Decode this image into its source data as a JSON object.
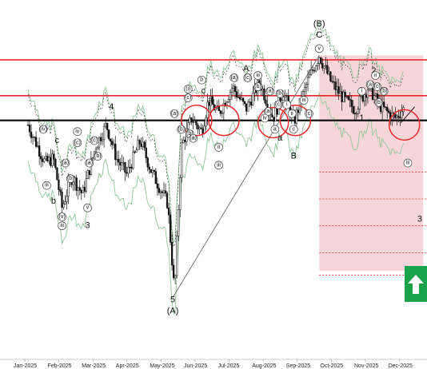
{
  "chart_data": {
    "type": "candlestick",
    "title": "",
    "xlabel": "",
    "ylabel": "",
    "x_tick_labels": [
      "Jan-2025",
      "Feb-2025",
      "Mar-2025",
      "Apr-2025",
      "May-2025",
      "Jun-2025",
      "Jul-2025",
      "Aug-2025",
      "Sep-2025",
      "Oct-2025",
      "Nov-2025",
      "Dec-2025"
    ],
    "y_range": [
      0,
      100
    ],
    "horizontal_levels": [
      {
        "name": "resistance-top",
        "value": 84,
        "color": "#e8282a"
      },
      {
        "name": "resistance-mid",
        "value": 68,
        "color": "#e8282a"
      },
      {
        "name": "support",
        "value": 57,
        "color": "#111111"
      }
    ],
    "target_zone": {
      "from_month": 8.55,
      "to_month": 11.6,
      "value_top": 86,
      "value_bottom": -10,
      "color": "#f4c8cc"
    },
    "target_lines": [
      34,
      22,
      10,
      -2,
      -12
    ],
    "trendline": [
      {
        "m": 4.25,
        "v": -22
      },
      {
        "m": 8.55,
        "v": 86
      }
    ],
    "candles_monthly_path": [
      {
        "m": 0.0,
        "v": 55
      },
      {
        "m": 0.5,
        "v": 38
      },
      {
        "m": 0.75,
        "v": 40
      },
      {
        "m": 1.0,
        "v": 18
      },
      {
        "m": 1.3,
        "v": 32
      },
      {
        "m": 1.6,
        "v": 24
      },
      {
        "m": 2.0,
        "v": 46
      },
      {
        "m": 2.3,
        "v": 55
      },
      {
        "m": 2.6,
        "v": 40
      },
      {
        "m": 2.9,
        "v": 33
      },
      {
        "m": 3.3,
        "v": 48
      },
      {
        "m": 3.6,
        "v": 35
      },
      {
        "m": 4.1,
        "v": 20
      },
      {
        "m": 4.3,
        "v": -20
      },
      {
        "m": 4.5,
        "v": 45
      },
      {
        "m": 4.8,
        "v": 58
      },
      {
        "m": 5.1,
        "v": 52
      },
      {
        "m": 5.3,
        "v": 66
      },
      {
        "m": 5.6,
        "v": 60
      },
      {
        "m": 6.0,
        "v": 72
      },
      {
        "m": 6.4,
        "v": 62
      },
      {
        "m": 6.8,
        "v": 74
      },
      {
        "m": 7.2,
        "v": 58
      },
      {
        "m": 7.5,
        "v": 70
      },
      {
        "m": 7.8,
        "v": 56
      },
      {
        "m": 8.2,
        "v": 74
      },
      {
        "m": 8.55,
        "v": 86
      },
      {
        "m": 8.9,
        "v": 74
      },
      {
        "m": 9.3,
        "v": 66
      },
      {
        "m": 9.6,
        "v": 62
      },
      {
        "m": 10.0,
        "v": 72
      },
      {
        "m": 10.3,
        "v": 64
      },
      {
        "m": 10.6,
        "v": 60
      },
      {
        "m": 10.8,
        "v": 58
      },
      {
        "m": 11.0,
        "v": 62
      }
    ],
    "wave_labels": [
      {
        "text": "(B)",
        "m": 8.55,
        "v": 100,
        "circled": false
      },
      {
        "text": "C",
        "m": 8.55,
        "v": 95,
        "circled": false
      },
      {
        "text": "v",
        "m": 8.55,
        "v": 89,
        "circled": true
      },
      {
        "text": "A",
        "m": 6.4,
        "v": 80,
        "circled": false
      },
      {
        "text": "B",
        "m": 7.8,
        "v": 41,
        "circled": false
      },
      {
        "text": "2",
        "m": 10.15,
        "v": 79,
        "circled": false
      },
      {
        "text": "1",
        "m": 9.8,
        "v": 58,
        "circled": false
      },
      {
        "text": "3",
        "m": 11.5,
        "v": 13,
        "circled": false
      },
      {
        "text": "4",
        "m": 2.45,
        "v": 63,
        "circled": false
      },
      {
        "text": "3",
        "m": 1.75,
        "v": 10,
        "circled": false
      },
      {
        "text": "5",
        "m": 4.25,
        "v": -23,
        "circled": false
      },
      {
        "text": "(A)",
        "m": 4.25,
        "v": -28,
        "circled": false
      },
      {
        "text": "b",
        "m": 5.1,
        "v": 75,
        "circled": true
      },
      {
        "text": "c",
        "m": 5.15,
        "v": 70,
        "circled": false
      },
      {
        "text": "a",
        "m": 5.35,
        "v": 66,
        "circled": false
      },
      {
        "text": "(a)",
        "m": 6.05,
        "v": 76,
        "circled": true
      },
      {
        "text": "(c)",
        "m": 6.45,
        "v": 76,
        "circled": true
      },
      {
        "text": "iii",
        "m": 6.75,
        "v": 77,
        "circled": true
      },
      {
        "text": "(b)",
        "m": 6.75,
        "v": 72,
        "circled": true
      },
      {
        "text": "(a)",
        "m": 7.1,
        "v": 70,
        "circled": true
      },
      {
        "text": "(b)",
        "m": 7.4,
        "v": 69,
        "circled": true
      },
      {
        "text": "(c)",
        "m": 7.35,
        "v": 64,
        "circled": true
      },
      {
        "text": "i",
        "m": 7.6,
        "v": 64,
        "circled": true
      },
      {
        "text": "ii",
        "m": 7.75,
        "v": 60,
        "circled": true
      },
      {
        "text": "iii",
        "m": 8.1,
        "v": 66,
        "circled": true
      },
      {
        "text": "(a)",
        "m": 7.05,
        "v": 61,
        "circled": true
      },
      {
        "text": "iv",
        "m": 6.95,
        "v": 58,
        "circled": true
      },
      {
        "text": "a",
        "m": 7.25,
        "v": 53,
        "circled": true
      },
      {
        "text": "c",
        "m": 7.8,
        "v": 53,
        "circled": true
      },
      {
        "text": "(c)",
        "m": 8.25,
        "v": 60,
        "circled": true
      },
      {
        "text": "ii",
        "m": 10.2,
        "v": 77,
        "circled": true
      },
      {
        "text": "(c)",
        "m": 10.25,
        "v": 72,
        "circled": true
      },
      {
        "text": "(a)",
        "m": 10.05,
        "v": 73,
        "circled": true
      },
      {
        "text": "(b)",
        "m": 10.45,
        "v": 70,
        "circled": true
      },
      {
        "text": "iii",
        "m": 11.15,
        "v": 38,
        "circled": true
      },
      {
        "text": "i",
        "m": 9.8,
        "v": 70,
        "circled": true
      },
      {
        "text": "(b)",
        "m": 10.3,
        "v": 65,
        "circled": true
      },
      {
        "text": "(i)",
        "m": 4.7,
        "v": 71,
        "circled": true
      },
      {
        "text": "(c)",
        "m": 4.7,
        "v": 67,
        "circled": true
      },
      {
        "text": "(a)",
        "m": 4.3,
        "v": 60,
        "circled": true
      },
      {
        "text": "(b)",
        "m": 4.5,
        "v": 53,
        "circled": true
      },
      {
        "text": "(b)",
        "m": 4.75,
        "v": 51,
        "circled": true
      },
      {
        "text": "(a)",
        "m": 4.85,
        "v": 49,
        "circled": true
      },
      {
        "text": "(iv)",
        "m": 0.45,
        "v": 53,
        "circled": true
      },
      {
        "text": "iv",
        "m": 1.45,
        "v": 52,
        "circled": true
      },
      {
        "text": "(c)",
        "m": 1.45,
        "v": 47,
        "circled": true
      },
      {
        "text": "(a)",
        "m": 1.1,
        "v": 38,
        "circled": true
      },
      {
        "text": "(b)",
        "m": 1.25,
        "v": 31,
        "circled": true
      },
      {
        "text": "(a)",
        "m": 1.8,
        "v": 38,
        "circled": true
      },
      {
        "text": "(b)",
        "m": 2.05,
        "v": 41,
        "circled": true
      },
      {
        "text": "(c)",
        "m": 1.95,
        "v": 48,
        "circled": true
      },
      {
        "text": "v",
        "m": 1.75,
        "v": 18,
        "circled": true
      },
      {
        "text": "iii",
        "m": 0.55,
        "v": 28,
        "circled": true
      },
      {
        "text": "(v)",
        "m": 1.0,
        "v": 14,
        "circled": true
      },
      {
        "text": "iii",
        "m": 1.0,
        "v": 10,
        "circled": true
      },
      {
        "text": "b",
        "m": 0.75,
        "v": 21,
        "circled": false
      },
      {
        "text": "c",
        "m": 0.85,
        "v": 48,
        "circled": false
      },
      {
        "text": "ii",
        "m": 5.6,
        "v": 45,
        "circled": true
      },
      {
        "text": "iii",
        "m": 5.6,
        "v": 37,
        "circled": true
      },
      {
        "text": "a",
        "m": 7.4,
        "v": 49,
        "circled": false
      }
    ]
  },
  "red_circles": [
    {
      "m": 4.95,
      "v": 57
    },
    {
      "m": 5.75,
      "v": 57
    },
    {
      "m": 7.2,
      "v": 56
    },
    {
      "m": 7.85,
      "v": 57
    },
    {
      "m": 11.05,
      "v": 55
    }
  ],
  "colors": {
    "accent_up": "#1aa34a",
    "level_red": "#e8282a",
    "band": "#8fc79a",
    "zone": "#f4c8cc"
  },
  "icons": {
    "up_arrow": "up-arrow-icon"
  }
}
